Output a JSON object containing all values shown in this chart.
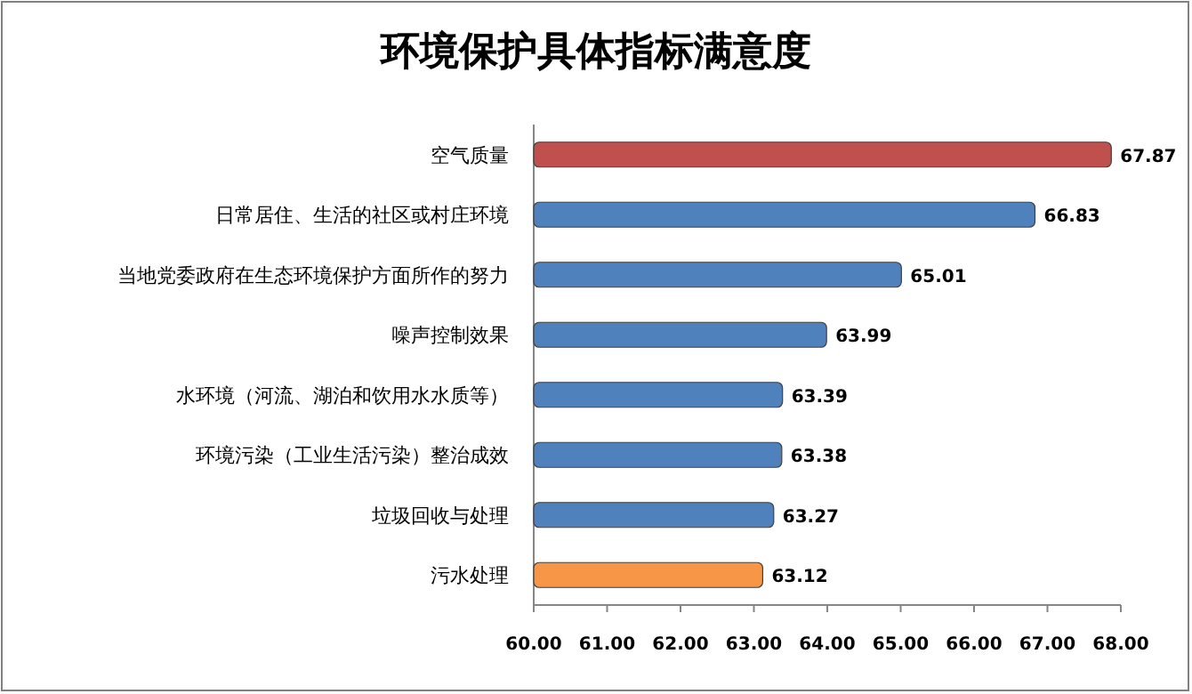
{
  "chart_data": {
    "type": "bar",
    "orientation": "horizontal",
    "title": "环境保护具体指标满意度",
    "categories": [
      "空气质量",
      "日常居住、生活的社区或村庄环境",
      "当地党委政府在生态环境保护方面所作的努力",
      "噪声控制效果",
      "水环境（河流、湖泊和饮用水水质等）",
      "环境污染（工业生活污染）整治成效",
      "垃圾回收与处理",
      "污水处理"
    ],
    "values": [
      67.87,
      66.83,
      65.01,
      63.99,
      63.39,
      63.38,
      63.27,
      63.12
    ],
    "value_labels": [
      "67.87",
      "66.83",
      "65.01",
      "63.99",
      "63.39",
      "63.38",
      "63.27",
      "63.12"
    ],
    "colors": [
      "#c0504d",
      "#4f81bd",
      "#4f81bd",
      "#4f81bd",
      "#4f81bd",
      "#4f81bd",
      "#4f81bd",
      "#f79646"
    ],
    "xlim": [
      60,
      68
    ],
    "xticks": [
      {
        "value": 60,
        "label": "60.00"
      },
      {
        "value": 61,
        "label": "61.00"
      },
      {
        "value": 62,
        "label": "62.00"
      },
      {
        "value": 63,
        "label": "63.00"
      },
      {
        "value": 64,
        "label": "64.00"
      },
      {
        "value": 65,
        "label": "65.00"
      },
      {
        "value": 66,
        "label": "66.00"
      },
      {
        "value": 67,
        "label": "67.00"
      },
      {
        "value": 68,
        "label": "68.00"
      }
    ]
  }
}
